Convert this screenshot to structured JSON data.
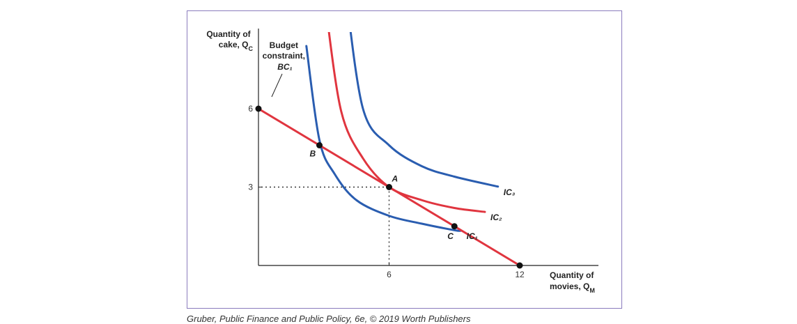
{
  "chart_data": {
    "type": "line",
    "ylabel_lines": [
      "Quantity of",
      "cake, Q_C"
    ],
    "xlabel_lines": [
      "Quantity of",
      "movies, Q_M"
    ],
    "budget_label_lines": [
      "Budget",
      "constraint,",
      "BC₁"
    ],
    "xlim": [
      0,
      14
    ],
    "ylim": [
      0,
      7.5
    ],
    "x_ticks": [
      6,
      12
    ],
    "y_ticks": [
      3,
      6
    ],
    "budget_constraint": {
      "name": "BC₁",
      "color": "#e0353f",
      "points": [
        [
          0,
          6
        ],
        [
          12,
          0
        ]
      ]
    },
    "series": [
      {
        "name": "IC₁",
        "color": "#2a5db0",
        "points": [
          [
            2.2,
            8.4
          ],
          [
            2.8,
            4.8
          ],
          [
            3.5,
            3.5
          ],
          [
            4.5,
            2.5
          ],
          [
            6,
            1.9
          ],
          [
            7.5,
            1.6
          ],
          [
            9,
            1.35
          ],
          [
            9.3,
            1.33
          ]
        ]
      },
      {
        "name": "IC₂",
        "color": "#e0353f",
        "points": [
          [
            3.1,
            9.8
          ],
          [
            3.8,
            5.9
          ],
          [
            4.8,
            4.1
          ],
          [
            6,
            3.0
          ],
          [
            7.5,
            2.5
          ],
          [
            9,
            2.2
          ],
          [
            10.4,
            2.05
          ]
        ]
      },
      {
        "name": "IC₃",
        "color": "#2a5db0",
        "points": [
          [
            4.0,
            10.5
          ],
          [
            4.8,
            6.0
          ],
          [
            6,
            4.6
          ],
          [
            7.5,
            3.8
          ],
          [
            9,
            3.4
          ],
          [
            11.0,
            3.02
          ]
        ]
      }
    ],
    "labeled_points": [
      {
        "label": "B",
        "x": 2.8,
        "y": 4.6
      },
      {
        "label": "A",
        "x": 6,
        "y": 3
      },
      {
        "label": "C",
        "x": 9,
        "y": 1.5
      }
    ],
    "reference_lines": {
      "x": 6,
      "y": 3
    }
  },
  "credit": "Gruber, Public Finance and Public Policy, 6e, © 2019 Worth Publishers"
}
